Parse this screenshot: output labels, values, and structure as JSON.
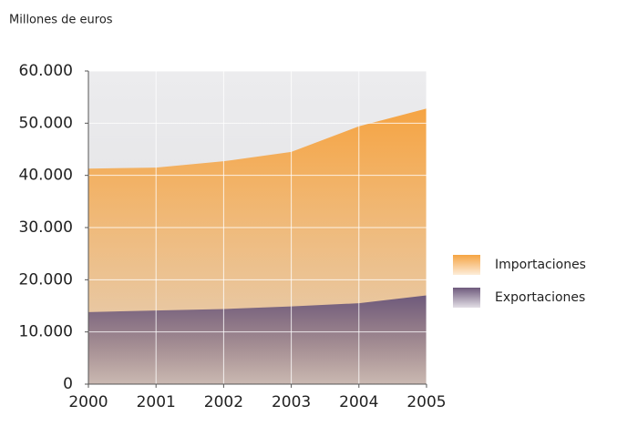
{
  "chart_data": {
    "type": "area",
    "y_axis_label": "Millones de euros",
    "x": [
      2000,
      2001,
      2002,
      2003,
      2004,
      2005
    ],
    "series": [
      {
        "name": "Importaciones",
        "color": "#f5a443",
        "values": [
          41300,
          41500,
          42700,
          44500,
          49400,
          52800
        ]
      },
      {
        "name": "Exportaciones",
        "color": "#6e5a7c",
        "values": [
          13800,
          14100,
          14400,
          14900,
          15500,
          17000
        ]
      }
    ],
    "xlim": [
      2000,
      2005
    ],
    "xticks": [
      2000,
      2001,
      2002,
      2003,
      2004,
      2005
    ],
    "ylim": [
      0,
      60000
    ],
    "yticks": [
      0,
      {
        "value": 10000,
        "label": "10.000"
      },
      {
        "value": 20000,
        "label": "20.000"
      },
      {
        "value": 30000,
        "label": "30.000"
      },
      {
        "value": 40000,
        "label": "40.000"
      },
      {
        "value": 50000,
        "label": "50.000"
      },
      {
        "value": 60000,
        "label": "60.000"
      }
    ],
    "grid": true,
    "legend": "right"
  }
}
